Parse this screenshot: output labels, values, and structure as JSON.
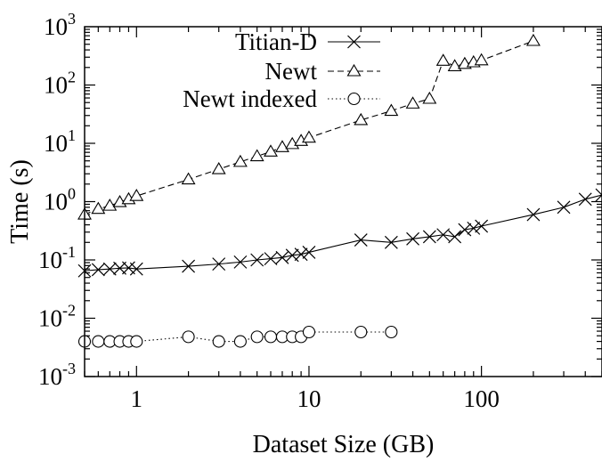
{
  "chart_data": {
    "type": "line",
    "title": "",
    "xlabel": "Dataset Size (GB)",
    "ylabel": "Time (s)",
    "x_scale": "log",
    "y_scale": "log",
    "xlim": [
      0.5,
      500
    ],
    "ylim": [
      0.001,
      1000
    ],
    "grid": false,
    "legend_position": "top-center",
    "x_ticks": [
      {
        "value": 1,
        "label": "1"
      },
      {
        "value": 10,
        "label": "10"
      },
      {
        "value": 100,
        "label": "100"
      }
    ],
    "y_ticks": [
      {
        "value": 0.001,
        "base": "10",
        "exp": "-3"
      },
      {
        "value": 0.01,
        "base": "10",
        "exp": "-2"
      },
      {
        "value": 0.1,
        "base": "10",
        "exp": "-1"
      },
      {
        "value": 1,
        "label": "10",
        "suffix": "0"
      },
      {
        "value": 10,
        "base": "10",
        "exp": "1"
      },
      {
        "value": 100,
        "base": "10",
        "exp": "2"
      },
      {
        "value": 1000,
        "base": "10",
        "exp": "3"
      }
    ],
    "series": [
      {
        "name": "Titian-D",
        "marker": "x",
        "dash": "solid",
        "color": "#000000",
        "x": [
          0.5,
          0.6,
          0.7,
          0.8,
          0.9,
          1,
          2,
          3,
          4,
          5,
          6,
          7,
          8,
          9,
          10,
          20,
          30,
          40,
          50,
          60,
          70,
          80,
          90,
          100,
          200,
          300,
          400,
          500
        ],
        "y": [
          0.065,
          0.068,
          0.07,
          0.072,
          0.073,
          0.07,
          0.078,
          0.085,
          0.092,
          0.1,
          0.105,
          0.11,
          0.12,
          0.125,
          0.135,
          0.22,
          0.2,
          0.23,
          0.25,
          0.27,
          0.25,
          0.33,
          0.35,
          0.38,
          0.6,
          0.8,
          1.1,
          1.3
        ]
      },
      {
        "name": "Newt",
        "marker": "triangle",
        "dash": "dashed",
        "color": "#000000",
        "x": [
          0.5,
          0.6,
          0.7,
          0.8,
          0.9,
          1,
          2,
          3,
          4,
          5,
          6,
          7,
          8,
          9,
          10,
          20,
          30,
          40,
          50,
          60,
          70,
          80,
          90,
          100,
          200
        ],
        "y": [
          0.6,
          0.75,
          0.85,
          0.98,
          1.1,
          1.25,
          2.4,
          3.6,
          4.8,
          6.0,
          7.2,
          8.6,
          9.7,
          11,
          12.5,
          25,
          36,
          48,
          58,
          260,
          210,
          230,
          245,
          265,
          570
        ]
      },
      {
        "name": "Newt indexed",
        "marker": "circle",
        "dash": "dotted",
        "color": "#000000",
        "x": [
          0.5,
          0.6,
          0.7,
          0.8,
          0.9,
          1,
          2,
          3,
          4,
          5,
          6,
          7,
          8,
          9,
          10,
          20,
          30
        ],
        "y": [
          0.004,
          0.004,
          0.004,
          0.004,
          0.004,
          0.004,
          0.0048,
          0.004,
          0.004,
          0.0048,
          0.0048,
          0.0048,
          0.0048,
          0.0048,
          0.0058,
          0.0058,
          0.0058
        ]
      }
    ]
  }
}
